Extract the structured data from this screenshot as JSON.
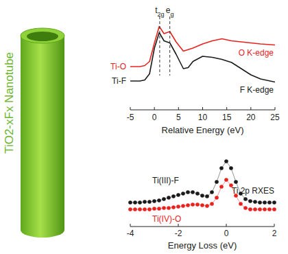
{
  "illustration": {
    "label": "TiO2-xFx Nanotube"
  },
  "chart_data": [
    {
      "type": "line",
      "xlabel": "Relative Energy (eV)",
      "xlim": [
        -5,
        25
      ],
      "xticks": [
        -5,
        0,
        5,
        10,
        15,
        20,
        25
      ],
      "ylim": [
        0,
        1
      ],
      "tick_labels": "x",
      "grid": false,
      "annotations": [
        {
          "text": "t2g",
          "x": 1.1
        },
        {
          "text": "eg",
          "x": 3.2
        },
        {
          "text": "Ti-O",
          "color": "#e8231f"
        },
        {
          "text": "Ti-F",
          "color": "#1a1a1a"
        }
      ],
      "series": [
        {
          "name": "O K-edge",
          "color": "#e8231f",
          "x": [
            -5,
            -3,
            -2,
            -1,
            0,
            1,
            2,
            3.2,
            4.5,
            6,
            8,
            10,
            12,
            14,
            16,
            18,
            20,
            22,
            25
          ],
          "values": [
            0.42,
            0.42,
            0.43,
            0.47,
            0.65,
            0.81,
            0.74,
            0.76,
            0.66,
            0.57,
            0.6,
            0.64,
            0.67,
            0.69,
            0.67,
            0.66,
            0.65,
            0.64,
            0.63
          ]
        },
        {
          "name": "F K-edge",
          "color": "#1a1a1a",
          "x": [
            -5,
            -3,
            -2,
            -1,
            0,
            1,
            2,
            3.2,
            4.5,
            6,
            7,
            8,
            10,
            12,
            14,
            16,
            18,
            20,
            22,
            25
          ],
          "values": [
            0.28,
            0.28,
            0.29,
            0.35,
            0.6,
            0.75,
            0.67,
            0.65,
            0.54,
            0.4,
            0.41,
            0.47,
            0.52,
            0.51,
            0.49,
            0.46,
            0.4,
            0.34,
            0.3,
            0.27
          ]
        }
      ]
    },
    {
      "type": "scatter",
      "title": "Ti 2p RXES",
      "xlabel": "Energy Loss (eV)",
      "xlim": [
        -4,
        2
      ],
      "xticks": [
        -4,
        -2,
        0,
        2
      ],
      "ylim": [
        0,
        1
      ],
      "tick_labels": "x",
      "grid": false,
      "x": [
        -4,
        -3.8,
        -3.6,
        -3.4,
        -3.2,
        -3.0,
        -2.8,
        -2.6,
        -2.4,
        -2.2,
        -2.0,
        -1.8,
        -1.6,
        -1.4,
        -1.2,
        -1.0,
        -0.8,
        -0.6,
        -0.4,
        -0.2,
        0,
        0.2,
        0.4,
        0.6,
        0.8,
        1.0,
        1.2,
        1.4,
        1.6,
        1.8,
        2.0
      ],
      "series": [
        {
          "name": "Ti(III)-F",
          "color": "#1a1a1a",
          "marker": "circle",
          "values": [
            0.35,
            0.35,
            0.35,
            0.36,
            0.36,
            0.37,
            0.38,
            0.4,
            0.42,
            0.44,
            0.46,
            0.48,
            0.5,
            0.5,
            0.48,
            0.45,
            0.44,
            0.5,
            0.65,
            0.85,
            0.95,
            0.85,
            0.65,
            0.48,
            0.4,
            0.37,
            0.36,
            0.35,
            0.35,
            0.35,
            0.35
          ]
        },
        {
          "name": "Ti(IV)-O",
          "color": "#e8231f",
          "marker": "circle",
          "values": [
            0.25,
            0.25,
            0.25,
            0.25,
            0.25,
            0.26,
            0.26,
            0.27,
            0.27,
            0.28,
            0.29,
            0.3,
            0.31,
            0.32,
            0.32,
            0.31,
            0.3,
            0.33,
            0.42,
            0.58,
            0.68,
            0.6,
            0.45,
            0.33,
            0.27,
            0.25,
            0.25,
            0.25,
            0.25,
            0.25,
            0.25
          ]
        }
      ]
    }
  ]
}
